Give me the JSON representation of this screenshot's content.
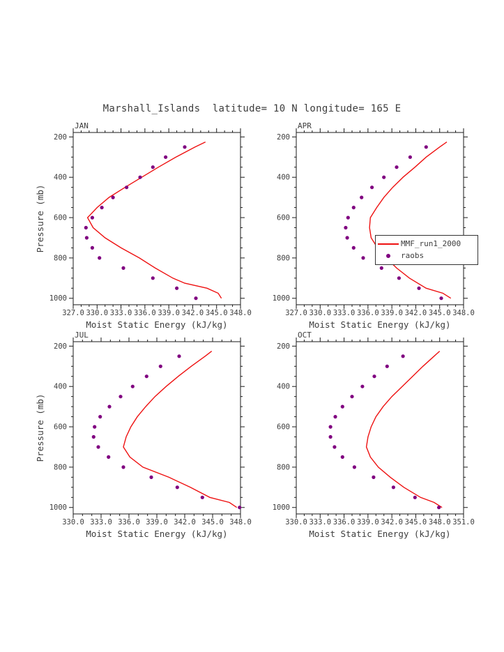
{
  "title": "Marshall_Islands  latitude= 10 N longitude= 165 E",
  "colors": {
    "mmf_line": "#ee1111",
    "raobs_dot": "#800080",
    "frame": "#1a1a1a",
    "text": "#3d3d3d"
  },
  "legend": {
    "entries": [
      {
        "label": "MMF_run1_2000",
        "type": "line"
      },
      {
        "label": "raobs",
        "type": "dot"
      }
    ]
  },
  "axes": {
    "xlabel": "Moist Static Energy (kJ/kg)",
    "ylabel": "Pressure (mb)",
    "yticks": [
      200,
      400,
      600,
      800,
      1000
    ],
    "ylim": [
      178,
      1032
    ],
    "y_inverted": true,
    "grid": false
  },
  "chart_data": [
    {
      "type": "line",
      "panel": "JAN",
      "xlabel": "Moist Static Energy (kJ/kg)",
      "ylabel": "Pressure (mb)",
      "xlim": [
        327,
        348
      ],
      "xticks": [
        327,
        330,
        333,
        336,
        339,
        342,
        345,
        348
      ],
      "series": [
        {
          "name": "MMF_run1_2000",
          "type": "line",
          "points": [
            [
              225,
              343.6
            ],
            [
              250,
              342.3
            ],
            [
              300,
              339.9
            ],
            [
              350,
              337.7
            ],
            [
              400,
              335.6
            ],
            [
              450,
              333.5
            ],
            [
              500,
              331.5
            ],
            [
              550,
              330.0
            ],
            [
              600,
              328.8
            ],
            [
              650,
              329.5
            ],
            [
              700,
              331.0
            ],
            [
              750,
              333.0
            ],
            [
              800,
              335.3
            ],
            [
              850,
              337.3
            ],
            [
              900,
              339.5
            ],
            [
              925,
              341.0
            ],
            [
              950,
              343.8
            ],
            [
              975,
              345.2
            ],
            [
              1000,
              345.6
            ]
          ]
        },
        {
          "name": "raobs",
          "type": "scatter",
          "points": [
            [
              250,
              341.0
            ],
            [
              300,
              338.6
            ],
            [
              350,
              337.0
            ],
            [
              400,
              335.4
            ],
            [
              450,
              333.7
            ],
            [
              500,
              332.0
            ],
            [
              550,
              330.6
            ],
            [
              600,
              329.4
            ],
            [
              650,
              328.6
            ],
            [
              700,
              328.7
            ],
            [
              750,
              329.4
            ],
            [
              800,
              330.3
            ],
            [
              850,
              333.3
            ],
            [
              900,
              337.0
            ],
            [
              950,
              340.0
            ],
            [
              1000,
              342.4
            ]
          ]
        }
      ]
    },
    {
      "type": "line",
      "panel": "APR",
      "xlabel": "Moist Static Energy (kJ/kg)",
      "ylabel": "Pressure (mb)",
      "xlim": [
        327,
        348
      ],
      "xticks": [
        327,
        330,
        333,
        336,
        339,
        342,
        345,
        348
      ],
      "series": [
        {
          "name": "MMF_run1_2000",
          "type": "line",
          "points": [
            [
              225,
              345.9
            ],
            [
              250,
              345.0
            ],
            [
              300,
              343.3
            ],
            [
              350,
              341.9
            ],
            [
              400,
              340.4
            ],
            [
              450,
              339.1
            ],
            [
              500,
              338.0
            ],
            [
              550,
              337.1
            ],
            [
              600,
              336.3
            ],
            [
              650,
              336.2
            ],
            [
              700,
              336.4
            ],
            [
              750,
              337.2
            ],
            [
              800,
              338.3
            ],
            [
              850,
              339.6
            ],
            [
              900,
              341.2
            ],
            [
              950,
              343.3
            ],
            [
              975,
              345.4
            ],
            [
              1000,
              346.4
            ]
          ]
        },
        {
          "name": "raobs",
          "type": "scatter",
          "points": [
            [
              250,
              343.3
            ],
            [
              300,
              341.3
            ],
            [
              350,
              339.6
            ],
            [
              400,
              338.0
            ],
            [
              450,
              336.5
            ],
            [
              500,
              335.2
            ],
            [
              550,
              334.2
            ],
            [
              600,
              333.5
            ],
            [
              650,
              333.2
            ],
            [
              700,
              333.4
            ],
            [
              750,
              334.2
            ],
            [
              800,
              335.4
            ],
            [
              850,
              337.7
            ],
            [
              900,
              339.9
            ],
            [
              950,
              342.4
            ],
            [
              1000,
              345.2
            ]
          ]
        }
      ]
    },
    {
      "type": "line",
      "panel": "JUL",
      "xlabel": "Moist Static Energy (kJ/kg)",
      "ylabel": "Pressure (mb)",
      "xlim": [
        330,
        348
      ],
      "xticks": [
        330,
        333,
        336,
        339,
        342,
        345,
        348
      ],
      "series": [
        {
          "name": "MMF_run1_2000",
          "type": "line",
          "points": [
            [
              225,
              344.9
            ],
            [
              250,
              344.2
            ],
            [
              300,
              342.7
            ],
            [
              350,
              341.3
            ],
            [
              400,
              340.0
            ],
            [
              450,
              338.8
            ],
            [
              500,
              337.8
            ],
            [
              550,
              336.9
            ],
            [
              600,
              336.2
            ],
            [
              650,
              335.7
            ],
            [
              700,
              335.4
            ],
            [
              750,
              336.1
            ],
            [
              800,
              337.5
            ],
            [
              850,
              340.3
            ],
            [
              900,
              342.6
            ],
            [
              950,
              344.7
            ],
            [
              975,
              346.8
            ],
            [
              1000,
              347.6
            ]
          ]
        },
        {
          "name": "raobs",
          "type": "scatter",
          "points": [
            [
              250,
              341.4
            ],
            [
              300,
              339.4
            ],
            [
              350,
              337.9
            ],
            [
              400,
              336.4
            ],
            [
              450,
              335.1
            ],
            [
              500,
              333.9
            ],
            [
              550,
              332.9
            ],
            [
              600,
              332.3
            ],
            [
              650,
              332.2
            ],
            [
              700,
              332.7
            ],
            [
              750,
              333.8
            ],
            [
              800,
              335.4
            ],
            [
              850,
              338.4
            ],
            [
              900,
              341.2
            ],
            [
              950,
              343.9
            ],
            [
              1000,
              347.9
            ]
          ]
        }
      ]
    },
    {
      "type": "line",
      "panel": "OCT",
      "xlabel": "Moist Static Energy (kJ/kg)",
      "ylabel": "Pressure (mb)",
      "xlim": [
        330,
        351
      ],
      "xticks": [
        330,
        333,
        336,
        339,
        342,
        345,
        348,
        351
      ],
      "series": [
        {
          "name": "MMF_run1_2000",
          "type": "line",
          "points": [
            [
              225,
              348.0
            ],
            [
              250,
              347.3
            ],
            [
              300,
              345.9
            ],
            [
              350,
              344.6
            ],
            [
              400,
              343.3
            ],
            [
              450,
              342.0
            ],
            [
              500,
              340.9
            ],
            [
              550,
              340.0
            ],
            [
              600,
              339.4
            ],
            [
              650,
              339.0
            ],
            [
              700,
              338.8
            ],
            [
              750,
              339.3
            ],
            [
              800,
              340.3
            ],
            [
              850,
              341.8
            ],
            [
              900,
              343.5
            ],
            [
              950,
              345.6
            ],
            [
              975,
              347.3
            ],
            [
              1000,
              348.3
            ]
          ]
        },
        {
          "name": "raobs",
          "type": "scatter",
          "points": [
            [
              250,
              343.4
            ],
            [
              300,
              341.4
            ],
            [
              350,
              339.8
            ],
            [
              400,
              338.3
            ],
            [
              450,
              337.0
            ],
            [
              500,
              335.8
            ],
            [
              550,
              334.9
            ],
            [
              600,
              334.3
            ],
            [
              650,
              334.3
            ],
            [
              700,
              334.8
            ],
            [
              750,
              335.8
            ],
            [
              800,
              337.3
            ],
            [
              850,
              339.7
            ],
            [
              900,
              342.2
            ],
            [
              950,
              344.9
            ],
            [
              1000,
              347.9
            ]
          ]
        }
      ]
    }
  ]
}
